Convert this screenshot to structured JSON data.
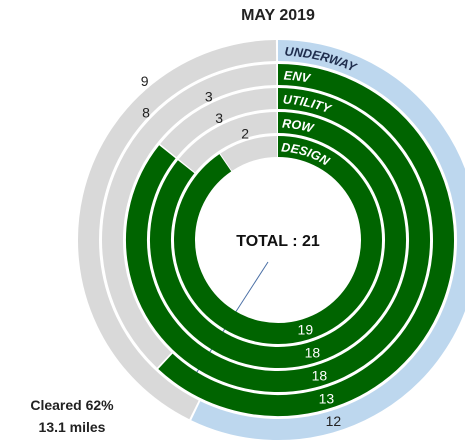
{
  "chart_data": {
    "type": "radial_bar",
    "title": "MAY 2019",
    "center_label": "TOTAL : 21",
    "annotation": [
      "Cleared 62%",
      "13.1 miles"
    ],
    "remaining_color": "#d9d9d9",
    "series": [
      {
        "name": "UNDERWAY",
        "color": "#bdd7ee",
        "values": [
          12,
          9
        ]
      },
      {
        "name": "ENV",
        "color": "#006400",
        "values": [
          13,
          8
        ]
      },
      {
        "name": "UTILITY",
        "color": "#006400",
        "values": [
          18,
          3
        ]
      },
      {
        "name": "ROW",
        "color": "#006400",
        "values": [
          18,
          3
        ]
      },
      {
        "name": "DESIGN",
        "color": "#006400",
        "values": [
          19,
          2
        ]
      }
    ]
  }
}
